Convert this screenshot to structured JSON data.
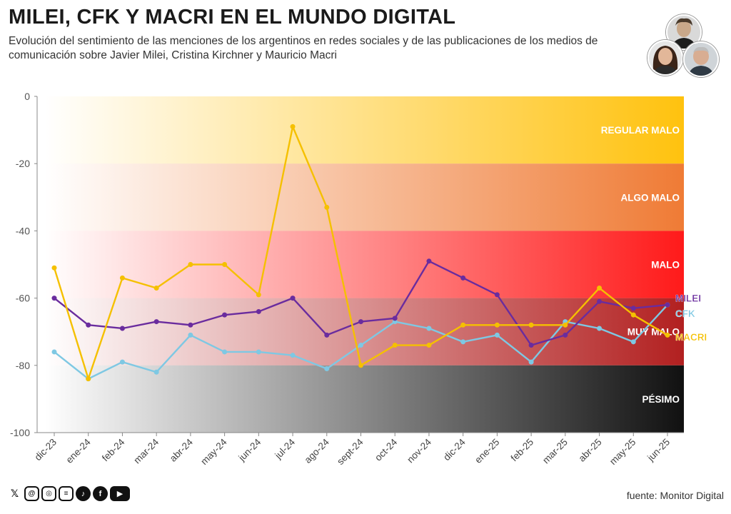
{
  "header": {
    "title": "MILEI, CFK Y MACRI EN EL MUNDO DIGITAL",
    "subtitle": "Evolución del sentimiento de las menciones de los argentinos en redes sociales y de las publicaciones de los medios de comunicación sobre Javier Milei, Cristina Kirchner y Mauricio Macri"
  },
  "avatars": [
    {
      "name": "milei-avatar"
    },
    {
      "name": "kirchner-avatar"
    },
    {
      "name": "macri-avatar"
    }
  ],
  "chart_data": {
    "type": "line",
    "categories": [
      "dic-23",
      "ene-24",
      "feb-24",
      "mar-24",
      "abr-24",
      "may-24",
      "jun-24",
      "jul-24",
      "ago-24",
      "sept-24",
      "oct-24",
      "nov-24",
      "dic-24",
      "ene-25",
      "feb-25",
      "mar-25",
      "abr-25",
      "may-25",
      "jun-25"
    ],
    "ylim": [
      -100,
      0
    ],
    "yticks": [
      0,
      -20,
      -40,
      -60,
      -80,
      -100
    ],
    "bands": [
      {
        "label": "REGULAR MALO",
        "from": 0,
        "to": -20,
        "color": "#FFC20E"
      },
      {
        "label": "ALGO MALO",
        "from": -20,
        "to": -40,
        "color": "#EF7B35"
      },
      {
        "label": "MALO",
        "from": -40,
        "to": -60,
        "color": "#FF1A1A"
      },
      {
        "label": "MUY MALO",
        "from": -60,
        "to": -80,
        "color": "#B22020"
      },
      {
        "label": "PÉSIMO",
        "from": -80,
        "to": -100,
        "color": "#111111"
      }
    ],
    "series": [
      {
        "name": "MILEI",
        "color": "#6A2C9E",
        "values": [
          -60,
          -68,
          -69,
          -67,
          -68,
          -65,
          -64,
          -60,
          -71,
          -67,
          -66,
          -49,
          -54,
          -59,
          -74,
          -71,
          -61,
          -63,
          -62
        ]
      },
      {
        "name": "CFK",
        "color": "#7EC8E3",
        "values": [
          -76,
          -84,
          -79,
          -82,
          -71,
          -76,
          -76,
          -77,
          -81,
          -74,
          -67,
          -69,
          -73,
          -71,
          -79,
          -67,
          -69,
          -73,
          -62
        ]
      },
      {
        "name": "MACRI",
        "color": "#F5C000",
        "values": [
          -51,
          -84,
          -54,
          -57,
          -50,
          -50,
          -59,
          -9,
          -33,
          -80,
          -74,
          -74,
          -68,
          -68,
          -68,
          -68,
          -57,
          -65,
          -71
        ]
      }
    ]
  },
  "footer": {
    "social": [
      {
        "name": "x-icon",
        "glyph": "𝕏"
      },
      {
        "name": "threads-icon",
        "glyph": "@"
      },
      {
        "name": "instagram-icon",
        "glyph": "◎"
      },
      {
        "name": "substack-icon",
        "glyph": "≡"
      },
      {
        "name": "tiktok-icon",
        "glyph": "♪"
      },
      {
        "name": "facebook-icon",
        "glyph": "f"
      },
      {
        "name": "youtube-icon",
        "glyph": "▶"
      }
    ],
    "source": "fuente: Monitor Digital"
  }
}
